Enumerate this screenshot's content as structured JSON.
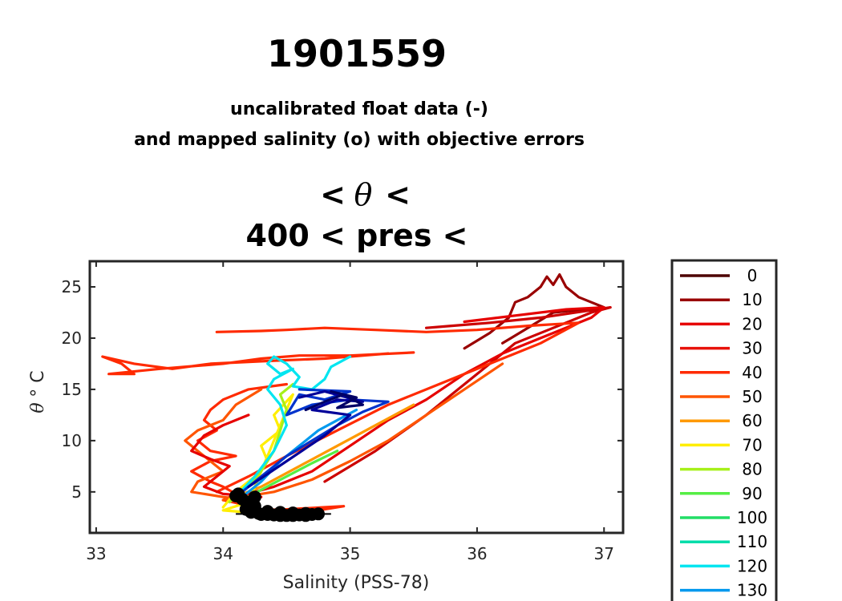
{
  "figure": {
    "title": "1901559",
    "subtitle_line1": "uncalibrated float data (-)",
    "subtitle_line2": "and mapped salinity (o) with objective errors",
    "plot_title_line1_left": "<",
    "plot_title_line1_symbol": "θ",
    "plot_title_line1_right": "<",
    "plot_title_line2": "400 < pres <"
  },
  "chart_data": {
    "type": "line",
    "xlabel": "Salinity (PSS-78)",
    "ylabel_symbol": "θ",
    "ylabel_unit": "° C",
    "xlim": [
      32.95,
      37.15
    ],
    "ylim": [
      1.0,
      27.5
    ],
    "xticks": [
      33,
      34,
      35,
      36,
      37
    ],
    "yticks": [
      5,
      10,
      15,
      20,
      25
    ],
    "grid": false,
    "legend_position": "right, outside plot",
    "legend": [
      {
        "label": "0",
        "color": "#4d0000"
      },
      {
        "label": "10",
        "color": "#990000"
      },
      {
        "label": "20",
        "color": "#e60000"
      },
      {
        "label": "30",
        "color": "#e8120a"
      },
      {
        "label": "40",
        "color": "#ff2a00"
      },
      {
        "label": "50",
        "color": "#ff5500"
      },
      {
        "label": "60",
        "color": "#ff9900"
      },
      {
        "label": "70",
        "color": "#ffee00"
      },
      {
        "label": "80",
        "color": "#a6f01a"
      },
      {
        "label": "90",
        "color": "#55ee44"
      },
      {
        "label": "100",
        "color": "#22dd66"
      },
      {
        "label": "110",
        "color": "#00ddaa"
      },
      {
        "label": "120",
        "color": "#00e5f0"
      },
      {
        "label": "130",
        "color": "#0099ee"
      }
    ],
    "series": [
      {
        "color": "#990000",
        "x": [
          35.9,
          36.1,
          36.25,
          36.3,
          36.4,
          36.5,
          36.55,
          36.6,
          36.65,
          36.7,
          36.8,
          36.9,
          37.0,
          36.6,
          36.4,
          36.2
        ],
        "y": [
          19.0,
          20.5,
          22.0,
          23.5,
          24.0,
          25.0,
          26.0,
          25.2,
          26.2,
          25.0,
          24.0,
          23.5,
          23.0,
          22.5,
          21.0,
          19.5
        ]
      },
      {
        "color": "#cc0000",
        "x": [
          34.8,
          35.2,
          35.6,
          35.9,
          36.1,
          36.3,
          36.6,
          36.9,
          37.05,
          36.5,
          36.1,
          35.8,
          35.6
        ],
        "y": [
          6.0,
          9.0,
          12.5,
          15.5,
          17.5,
          19.5,
          21.0,
          22.5,
          23.0,
          22.0,
          21.5,
          21.2,
          21.0
        ]
      },
      {
        "color": "#e60000",
        "x": [
          34.1,
          34.4,
          34.7,
          35.0,
          35.3,
          35.6,
          35.9,
          36.2,
          36.5,
          36.9,
          37.0,
          36.7,
          36.3,
          35.9
        ],
        "y": [
          4.5,
          5.5,
          7.0,
          9.5,
          12.0,
          14.0,
          16.5,
          18.5,
          20.0,
          22.0,
          23.0,
          22.8,
          22.2,
          21.6
        ]
      },
      {
        "color": "#ff2a00",
        "x": [
          33.95,
          34.2,
          34.5,
          34.9,
          35.3,
          35.7,
          36.1,
          36.5,
          36.8,
          36.4,
          36.0,
          35.6,
          35.2,
          34.8,
          34.5,
          34.3,
          33.95
        ],
        "y": [
          5.0,
          6.5,
          8.5,
          11.0,
          13.5,
          15.5,
          17.5,
          19.5,
          21.5,
          21.2,
          20.8,
          20.6,
          20.8,
          21.0,
          20.8,
          20.7,
          20.6
        ]
      },
      {
        "color": "#ff2a00",
        "x": [
          35.3,
          34.8,
          34.4,
          33.9,
          33.6,
          33.3,
          33.05,
          33.2,
          33.3,
          33.1,
          33.5,
          34.0,
          34.3,
          34.6,
          35.0,
          35.5
        ],
        "y": [
          18.5,
          18.0,
          17.8,
          17.5,
          17.0,
          17.5,
          18.2,
          17.5,
          16.5,
          16.5,
          17.0,
          17.5,
          18.0,
          18.3,
          18.3,
          18.6
        ]
      },
      {
        "color": "#ff2a00",
        "x": [
          34.5,
          34.2,
          34.0,
          33.9,
          33.85,
          33.95,
          33.8,
          33.9,
          34.1,
          33.9,
          33.75,
          33.9,
          34.0,
          34.1,
          34.0,
          34.15
        ],
        "y": [
          15.5,
          15.0,
          14.0,
          13.0,
          12.0,
          11.0,
          10.0,
          9.0,
          8.5,
          8.0,
          7.0,
          6.0,
          5.5,
          4.8,
          4.2,
          3.8
        ]
      },
      {
        "color": "#ff5500",
        "x": [
          34.3,
          34.1,
          34.0,
          33.8,
          33.7,
          33.8,
          33.9,
          34.0,
          33.8,
          33.75,
          34.0,
          34.2
        ],
        "y": [
          15.0,
          13.5,
          12.0,
          11.0,
          10.0,
          9.0,
          8.0,
          7.0,
          6.0,
          5.0,
          4.5,
          4.2
        ]
      },
      {
        "color": "#e60000",
        "x": [
          34.2,
          34.0,
          33.85,
          33.75,
          33.9,
          34.05,
          33.95,
          33.85,
          34.0,
          34.3
        ],
        "y": [
          12.5,
          11.5,
          10.5,
          9.0,
          8.2,
          7.5,
          6.5,
          5.5,
          4.8,
          4.5
        ]
      },
      {
        "color": "#ff5500",
        "x": [
          34.0,
          34.4,
          34.7,
          35.0,
          35.3,
          35.6,
          35.9,
          36.2
        ],
        "y": [
          4.2,
          5.0,
          6.2,
          8.0,
          10.0,
          12.5,
          15.0,
          17.5
        ]
      },
      {
        "color": "#ff9900",
        "x": [
          34.05,
          34.3,
          34.6,
          34.9,
          35.2,
          35.5
        ],
        "y": [
          4.3,
          5.5,
          7.5,
          9.5,
          11.5,
          13.5
        ]
      },
      {
        "color": "#ff2a00",
        "x": [
          34.2,
          34.5,
          34.8,
          34.95,
          34.7,
          34.4
        ],
        "y": [
          3.2,
          3.3,
          3.5,
          3.6,
          3.1,
          2.9
        ]
      },
      {
        "color": "#ffee00",
        "x": [
          34.0,
          34.1,
          34.25,
          34.35,
          34.3,
          34.45,
          34.4,
          34.55,
          34.2,
          34.0,
          34.7
        ],
        "y": [
          3.5,
          5.0,
          6.5,
          8.0,
          9.5,
          11.0,
          12.5,
          14.5,
          4.0,
          3.2,
          2.5
        ]
      },
      {
        "color": "#a6f01a",
        "x": [
          34.05,
          34.2,
          34.3,
          34.4,
          34.45,
          34.5,
          34.45,
          34.55
        ],
        "y": [
          4.0,
          5.5,
          7.0,
          9.0,
          11.0,
          13.0,
          14.5,
          15.5
        ]
      },
      {
        "color": "#55ee44",
        "x": [
          34.15,
          34.3,
          34.5,
          34.7,
          34.9
        ],
        "y": [
          4.2,
          5.2,
          6.5,
          7.8,
          9.0
        ]
      },
      {
        "color": "#00e5f0",
        "x": [
          34.1,
          34.25,
          34.4,
          34.5,
          34.45,
          34.35,
          34.4,
          34.55,
          34.45,
          34.35,
          34.4,
          34.5,
          34.6,
          34.55,
          34.7,
          34.8,
          34.85,
          35.0
        ],
        "y": [
          4.5,
          6.5,
          9.0,
          11.5,
          13.5,
          15.0,
          16.0,
          17.0,
          16.5,
          17.5,
          18.2,
          17.5,
          16.2,
          15.3,
          15.0,
          16.0,
          17.2,
          18.2
        ]
      },
      {
        "color": "#0099ee",
        "x": [
          34.15,
          34.3,
          34.45,
          34.6,
          34.75,
          34.9,
          35.05
        ],
        "y": [
          4.5,
          6.0,
          8.0,
          9.5,
          11.0,
          12.0,
          13.0
        ]
      },
      {
        "color": "#0033cc",
        "x": [
          34.1,
          34.3,
          34.5,
          34.7,
          34.9,
          35.1,
          35.3,
          35.0,
          34.7,
          34.5,
          34.6,
          34.8,
          35.0,
          34.6
        ],
        "y": [
          4.5,
          6.5,
          8.5,
          10.0,
          11.5,
          12.8,
          13.8,
          14.0,
          13.5,
          12.5,
          14.5,
          14.0,
          14.8,
          15.0
        ]
      },
      {
        "color": "#000099",
        "x": [
          34.2,
          34.5,
          34.8,
          35.0,
          34.7,
          34.9,
          35.1,
          34.8,
          34.6
        ],
        "y": [
          5.5,
          8.0,
          10.5,
          12.5,
          13.0,
          14.0,
          13.8,
          14.8,
          14.2
        ]
      },
      {
        "color": "#000066",
        "x": [
          34.65,
          34.8,
          34.95,
          35.1,
          34.9,
          35.05,
          34.85
        ],
        "y": [
          13.0,
          13.8,
          14.5,
          13.5,
          13.2,
          14.2,
          14.8
        ]
      },
      {
        "color": "#1a1a1a",
        "x": [
          34.1,
          34.15,
          34.2,
          34.25,
          34.15,
          34.3,
          34.45,
          34.6,
          34.75,
          34.55,
          34.35,
          34.2
        ],
        "y": [
          4.6,
          4.2,
          3.8,
          3.2,
          3.0,
          2.9,
          2.8,
          2.7,
          2.8,
          2.9,
          3.1,
          3.4
        ]
      }
    ],
    "mapped_points": {
      "color": "#000000",
      "x": [
        34.1,
        34.15,
        34.2,
        34.25,
        34.18,
        34.12,
        34.22,
        34.28,
        34.3,
        34.35,
        34.4,
        34.45,
        34.5,
        34.55,
        34.6,
        34.65,
        34.7,
        34.75,
        34.35,
        34.45,
        34.55,
        34.65,
        34.25,
        34.2
      ],
      "y": [
        4.6,
        4.3,
        4.0,
        3.6,
        3.3,
        4.8,
        3.0,
        2.9,
        2.8,
        2.8,
        2.75,
        2.7,
        2.7,
        2.7,
        2.75,
        2.7,
        2.8,
        2.85,
        3.1,
        3.0,
        2.95,
        2.9,
        4.5,
        3.8
      ]
    }
  }
}
